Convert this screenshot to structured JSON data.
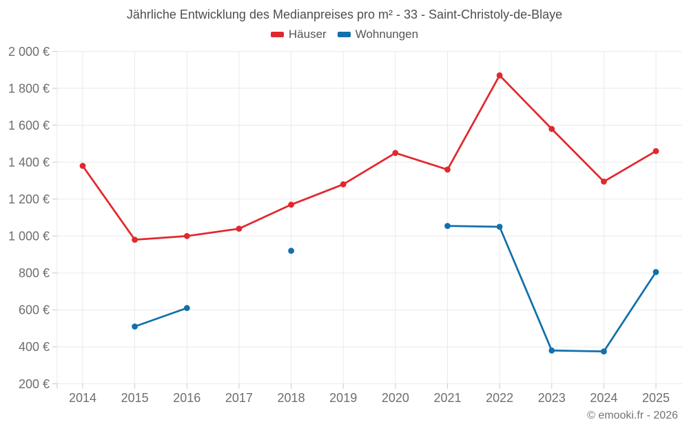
{
  "title": "Jährliche Entwicklung des Medianpreises pro m² - 33 - Saint-Christoly-de-Blaye",
  "footer": "© emooki.fr - 2026",
  "legend": {
    "items": [
      {
        "label": "Häuser",
        "color": "#e1282e"
      },
      {
        "label": "Wohnungen",
        "color": "#1270ab"
      }
    ]
  },
  "chart_data": {
    "type": "line",
    "title": "Jährliche Entwicklung des Medianpreises pro m² - 33 - Saint-Christoly-de-Blaye",
    "categories": [
      "2014",
      "2015",
      "2016",
      "2017",
      "2018",
      "2019",
      "2020",
      "2021",
      "2022",
      "2023",
      "2024",
      "2025"
    ],
    "series": [
      {
        "name": "Häuser",
        "color": "#e1282e",
        "values": [
          1380,
          980,
          1000,
          1040,
          1170,
          1280,
          1450,
          1360,
          1870,
          1580,
          1295,
          1460
        ]
      },
      {
        "name": "Wohnungen",
        "color": "#1270ab",
        "values": [
          null,
          510,
          610,
          null,
          920,
          null,
          null,
          1055,
          1050,
          380,
          375,
          805
        ]
      }
    ],
    "ylim": [
      200,
      2000
    ],
    "yticks": [
      {
        "value": 200,
        "label": "200 €"
      },
      {
        "value": 400,
        "label": "400 €"
      },
      {
        "value": 600,
        "label": "600 €"
      },
      {
        "value": 800,
        "label": "800 €"
      },
      {
        "value": 1000,
        "label": "1 000 €"
      },
      {
        "value": 1200,
        "label": "1 200 €"
      },
      {
        "value": 1400,
        "label": "1 400 €"
      },
      {
        "value": 1600,
        "label": "1 600 €"
      },
      {
        "value": 1800,
        "label": "1 800 €"
      },
      {
        "value": 2000,
        "label": "2 000 €"
      }
    ],
    "grid": true,
    "legend_position": "top",
    "xlabel": "",
    "ylabel": ""
  },
  "style": {
    "grid_color": "#eaeaea",
    "tick_color": "#c9c9c9",
    "tick_label_color": "#6e6e6e",
    "background": "#ffffff"
  }
}
